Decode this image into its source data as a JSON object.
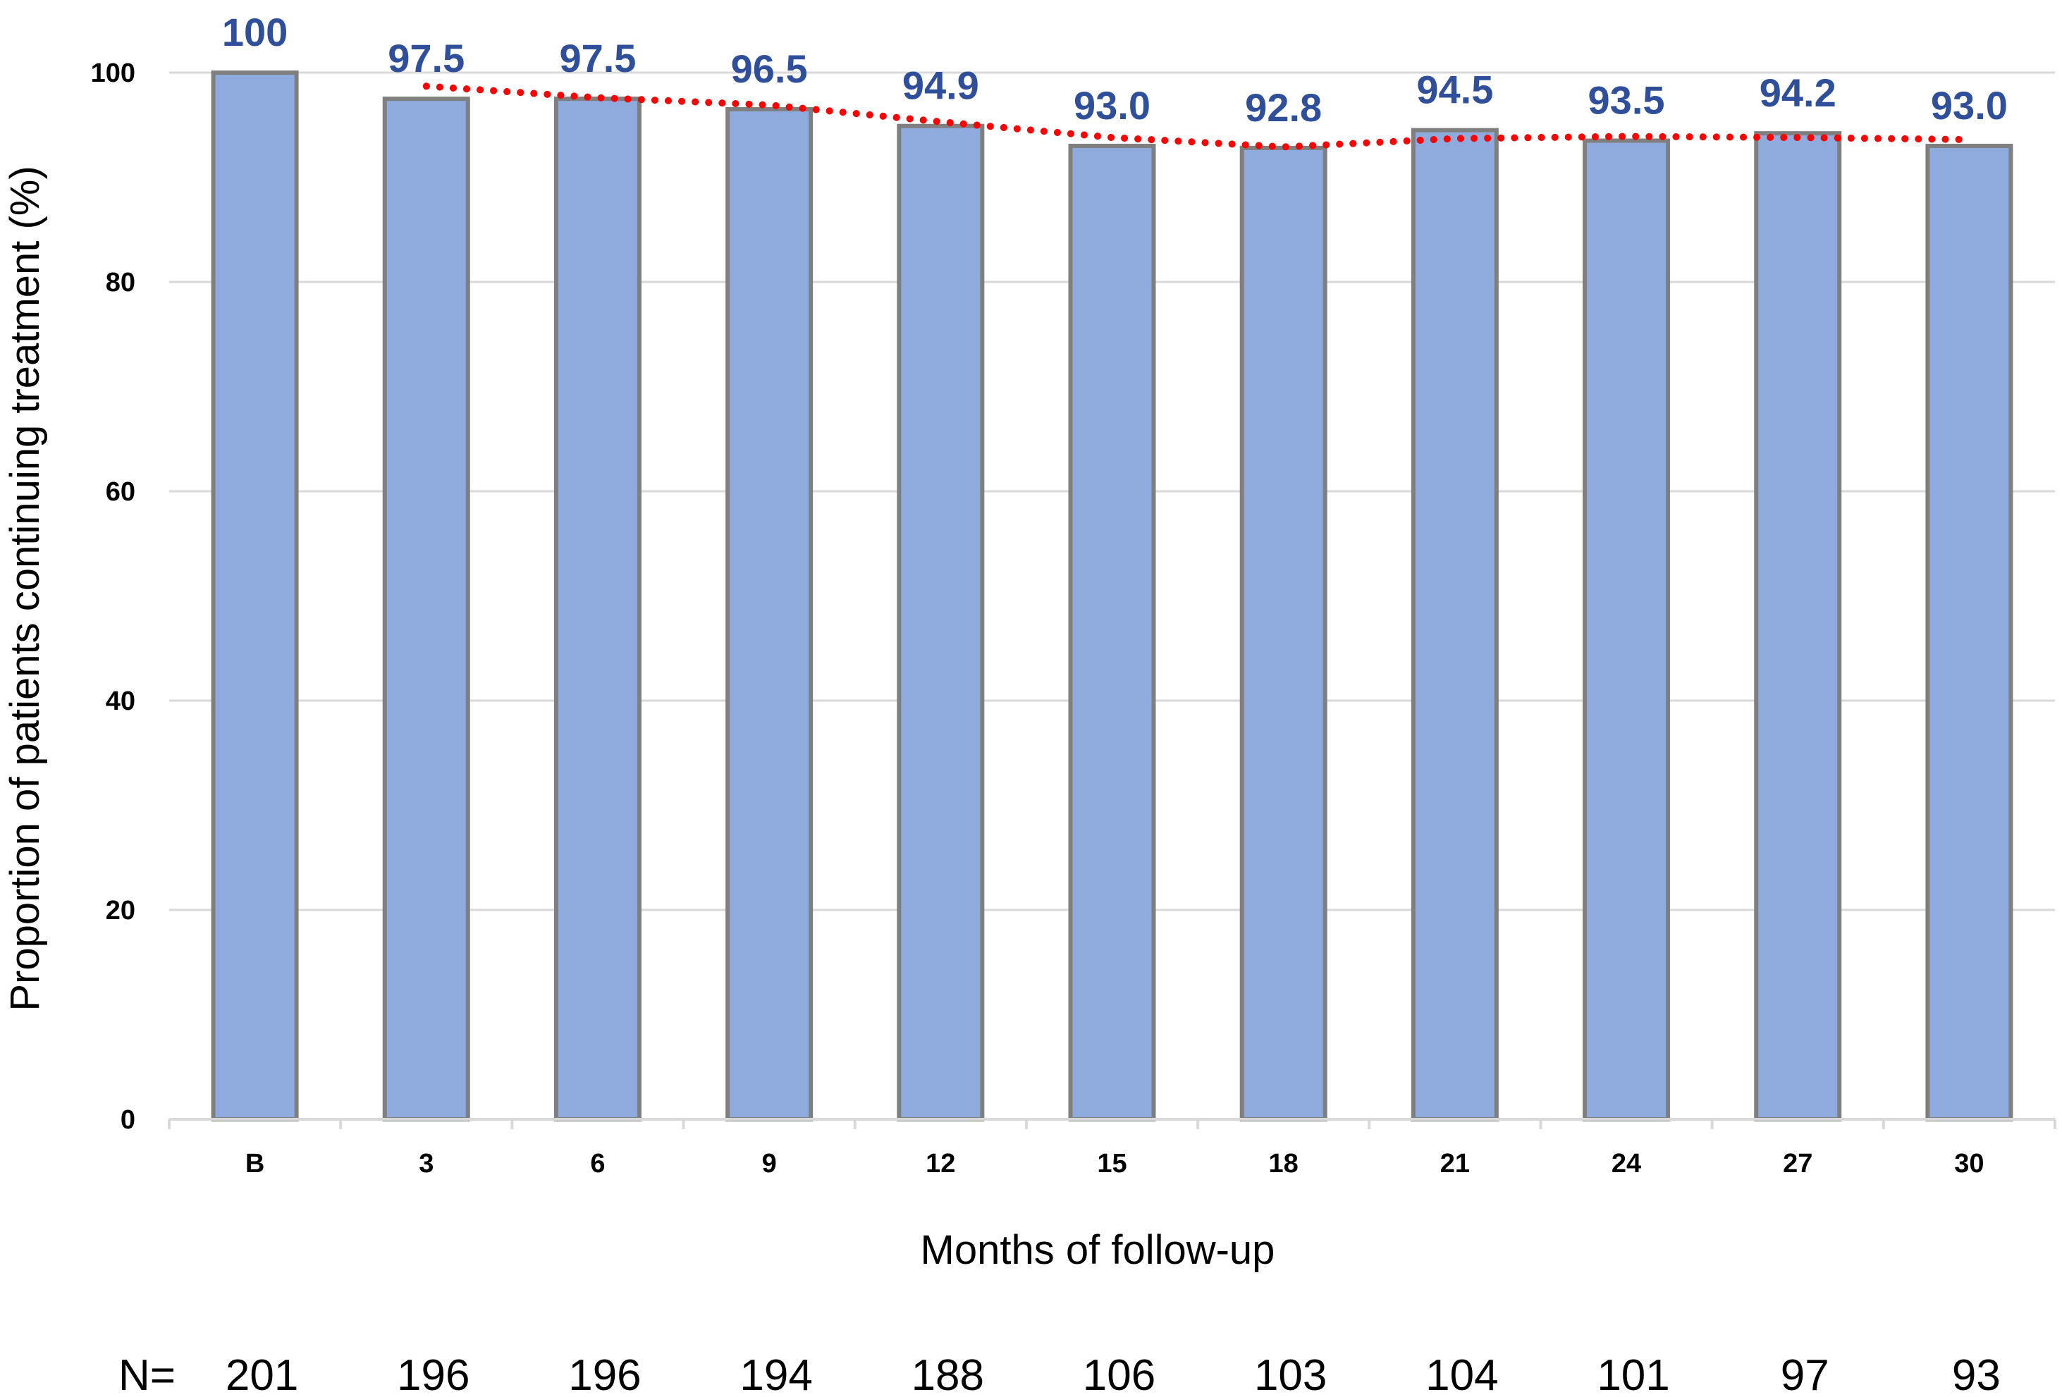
{
  "colors": {
    "bar_fill": "#8FAADC",
    "bar_stroke": "#7F7F7F",
    "trend_line": "#FF0000",
    "data_label": "#2F4F9A",
    "gridline": "#D9D9D9"
  },
  "chart_data": {
    "type": "bar",
    "title": "",
    "xlabel": "Months of follow-up",
    "ylabel": "Proportion of patients continuing treatment (%)",
    "ylim": [
      0,
      100
    ],
    "yticks": [
      0,
      20,
      40,
      60,
      80,
      100
    ],
    "grid": true,
    "categories": [
      "B",
      "3",
      "6",
      "9",
      "12",
      "15",
      "18",
      "21",
      "24",
      "27",
      "30"
    ],
    "values": [
      100,
      97.5,
      97.5,
      96.5,
      94.9,
      93.0,
      92.8,
      94.5,
      93.5,
      94.2,
      93.0
    ],
    "data_labels": [
      "100",
      "97.5",
      "97.5",
      "96.5",
      "94.9",
      "93.0",
      "92.8",
      "94.5",
      "93.5",
      "94.2",
      "93.0"
    ],
    "trendline": {
      "style": "dotted",
      "categories": [
        "3",
        "6",
        "9",
        "12",
        "15",
        "18",
        "21",
        "24",
        "27",
        "30"
      ],
      "values": [
        98.7,
        97.6,
        96.9,
        95.3,
        93.8,
        92.9,
        93.7,
        93.9,
        93.8,
        93.6
      ]
    },
    "n_row": {
      "label": "N=",
      "values": [
        "201",
        "196",
        "196",
        "194",
        "188",
        "106",
        "103",
        "104",
        "101",
        "97",
        "93"
      ]
    }
  }
}
